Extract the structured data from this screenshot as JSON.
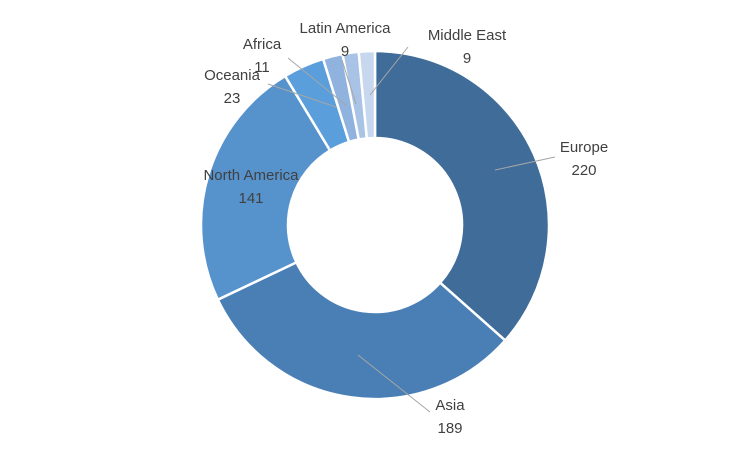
{
  "chart_data": {
    "type": "donut",
    "categories": [
      "Europe",
      "Asia",
      "North America",
      "Oceania",
      "Africa",
      "Latin America",
      "Middle East"
    ],
    "values": [
      220,
      189,
      141,
      23,
      11,
      9,
      9
    ],
    "colors": [
      "#3f6c99",
      "#4a7fb5",
      "#5693cd",
      "#5a9edb",
      "#8fb3de",
      "#a9c3e6",
      "#c6d7ee"
    ]
  }
}
